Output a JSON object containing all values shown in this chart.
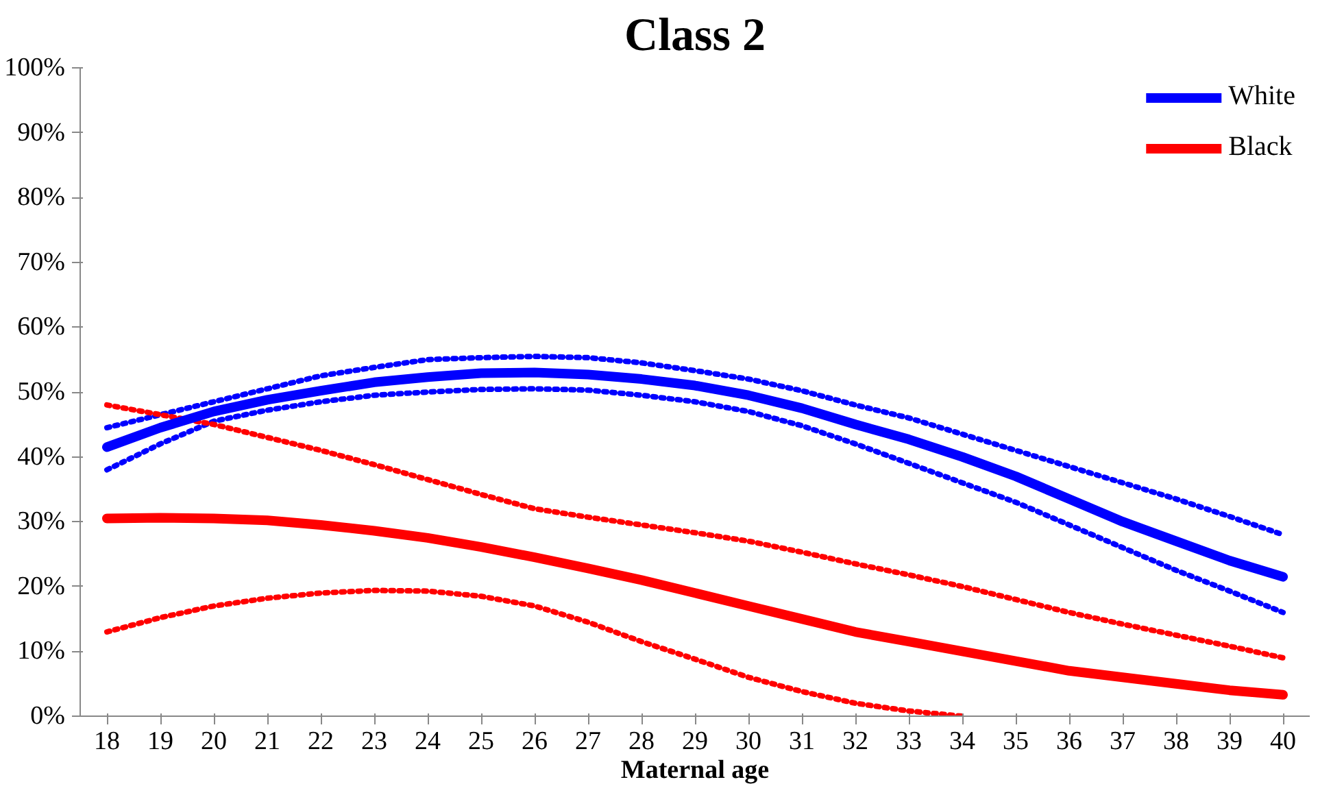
{
  "chart_data": {
    "type": "line",
    "title": "Class 2",
    "xlabel": "Maternal age",
    "categories": [
      "18",
      "19",
      "20",
      "21",
      "22",
      "23",
      "24",
      "25",
      "26",
      "27",
      "28",
      "29",
      "30",
      "31",
      "32",
      "33",
      "34",
      "35",
      "36",
      "37",
      "38",
      "39",
      "40"
    ],
    "ylim": [
      0,
      100
    ],
    "yticks": [
      {
        "value": 0,
        "label": "0%"
      },
      {
        "value": 10,
        "label": "10%"
      },
      {
        "value": 20,
        "label": "20%"
      },
      {
        "value": 30,
        "label": "30%"
      },
      {
        "value": 40,
        "label": "40%"
      },
      {
        "value": 50,
        "label": "50%"
      },
      {
        "value": 60,
        "label": "60%"
      },
      {
        "value": 70,
        "label": "70%"
      },
      {
        "value": 80,
        "label": "80%"
      },
      {
        "value": 90,
        "label": "90%"
      },
      {
        "value": 100,
        "label": "100%"
      }
    ],
    "grid": false,
    "legend": "top right",
    "line_style": "solid",
    "series": [
      {
        "color": "#0000ff",
        "line_style": "dotted",
        "values": [
          44.5,
          46.5,
          48.5,
          50.5,
          52.5,
          53.8,
          55,
          55.3,
          55.5,
          55.3,
          54.5,
          53.3,
          52,
          50.2,
          48,
          46,
          43.5,
          41,
          38.5,
          36,
          33.5,
          30.8,
          28
        ]
      },
      {
        "color": "#0000ff",
        "line_style": "dotted",
        "values": [
          38,
          42,
          45.5,
          47.2,
          48.5,
          49.5,
          50,
          50.4,
          50.5,
          50.3,
          49.5,
          48.5,
          47,
          44.8,
          42,
          39,
          36,
          33,
          29.5,
          26,
          22.5,
          19.3,
          16
        ]
      },
      {
        "color": "#ff0000",
        "line_style": "dotted",
        "values": [
          48,
          46.5,
          45,
          43,
          41,
          38.8,
          36.5,
          34.2,
          32,
          30.7,
          29.5,
          28.3,
          27,
          25.3,
          23.5,
          21.8,
          20,
          18,
          16,
          14.2,
          12.5,
          10.8,
          9
        ]
      },
      {
        "color": "#ff0000",
        "line_style": "dotted",
        "values": [
          13,
          15.2,
          17,
          18.2,
          19,
          19.4,
          19.3,
          18.5,
          17,
          14.5,
          11.5,
          8.8,
          6,
          3.8,
          2,
          0.8,
          0,
          null,
          null,
          null,
          null,
          null,
          null
        ]
      },
      {
        "name": "White",
        "color": "#0000ff",
        "values": [
          41.5,
          44.5,
          47,
          48.8,
          50.2,
          51.5,
          52.3,
          52.9,
          53,
          52.7,
          52,
          51,
          49.5,
          47.5,
          45,
          42.7,
          40,
          37,
          33.5,
          30,
          27,
          24,
          21.5
        ]
      },
      {
        "name": "Black",
        "color": "#ff0000",
        "values": [
          30.5,
          30.6,
          30.5,
          30.2,
          29.5,
          28.6,
          27.5,
          26.1,
          24.5,
          22.8,
          21,
          19,
          17,
          15,
          13,
          11.5,
          10,
          8.5,
          7,
          6,
          5,
          4,
          3.3
        ]
      }
    ]
  }
}
